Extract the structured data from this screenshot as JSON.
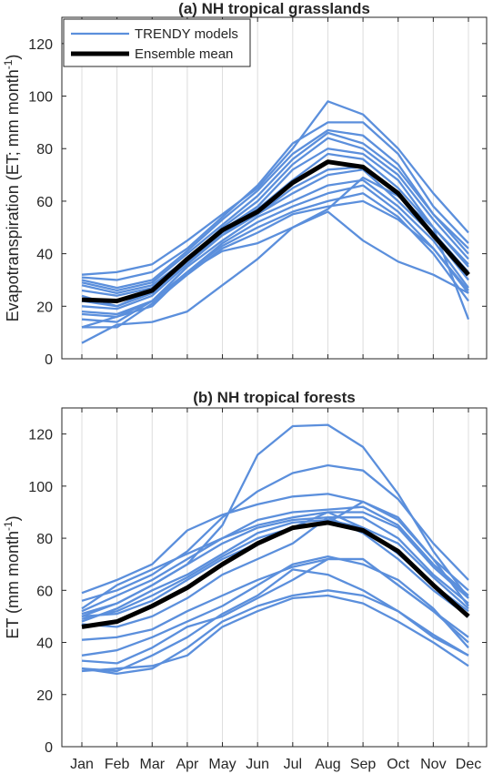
{
  "chart_data": [
    {
      "type": "line",
      "title": "(a) NH tropical grasslands",
      "ylabel": "Evapotranspiration (ET; mm month",
      "ylabel_sup": "-1",
      "ylabel_end": ")",
      "xlabel": "",
      "categories": [
        "Jan",
        "Feb",
        "Mar",
        "Apr",
        "May",
        "Jun",
        "Jul",
        "Aug",
        "Sep",
        "Oct",
        "Nov",
        "Dec"
      ],
      "show_x_tick_labels": false,
      "ylim": [
        0,
        130
      ],
      "yticks": [
        0,
        20,
        40,
        60,
        80,
        100,
        120
      ],
      "grid": "vertical",
      "legend": {
        "placement": "top-left",
        "entries": [
          {
            "label": "TRENDY models",
            "color": "#5b8fdc"
          },
          {
            "label": "Ensemble mean",
            "color": "#000000"
          }
        ]
      },
      "series": [
        {
          "values": [
            32,
            33,
            36,
            45,
            55,
            65,
            80,
            98,
            93,
            80,
            63,
            48
          ]
        },
        {
          "values": [
            31,
            30,
            33,
            42,
            54,
            66,
            82,
            90,
            90,
            78,
            58,
            44
          ]
        },
        {
          "values": [
            30,
            27,
            30,
            41,
            53,
            64,
            78,
            87,
            85,
            74,
            55,
            42
          ]
        },
        {
          "values": [
            29,
            26,
            29,
            40,
            51,
            62,
            76,
            86,
            82,
            72,
            55,
            40
          ]
        },
        {
          "values": [
            28,
            25,
            28,
            38,
            50,
            60,
            74,
            84,
            80,
            70,
            53,
            38
          ]
        },
        {
          "values": [
            26,
            24,
            27,
            37,
            49,
            58,
            72,
            80,
            78,
            68,
            50,
            36
          ]
        },
        {
          "values": [
            24,
            20,
            26,
            38,
            49,
            57,
            68,
            78,
            76,
            65,
            50,
            35
          ]
        },
        {
          "values": [
            22,
            20,
            25,
            37,
            48,
            55,
            65,
            72,
            73,
            63,
            48,
            33
          ]
        },
        {
          "values": [
            20,
            19,
            24,
            36,
            47,
            55,
            63,
            70,
            72,
            60,
            47,
            30
          ]
        },
        {
          "values": [
            18,
            17,
            22,
            35,
            45,
            54,
            60,
            66,
            68,
            58,
            45,
            27
          ]
        },
        {
          "values": [
            17,
            16,
            22,
            33,
            44,
            52,
            58,
            63,
            66,
            56,
            42,
            25
          ]
        },
        {
          "values": [
            15,
            14,
            22,
            33,
            43,
            50,
            56,
            60,
            63,
            54,
            40,
            22
          ]
        },
        {
          "values": [
            12,
            12,
            21,
            32,
            42,
            48,
            55,
            58,
            60,
            53,
            42,
            26
          ]
        },
        {
          "values": [
            12,
            16,
            20,
            33,
            41,
            44,
            50,
            56,
            45,
            37,
            32,
            25
          ]
        },
        {
          "values": [
            6,
            13,
            14,
            18,
            28,
            38,
            50,
            57,
            69,
            62,
            50,
            15
          ]
        }
      ],
      "mean": {
        "name": "Ensemble mean",
        "values": [
          22.5,
          22,
          26,
          38,
          49,
          56,
          67,
          75,
          73,
          63,
          47,
          32
        ]
      }
    },
    {
      "type": "line",
      "title": "(b) NH tropical forests",
      "ylabel": "ET (mm month",
      "ylabel_sup": "-1",
      "ylabel_end": ")",
      "xlabel": "",
      "categories": [
        "Jan",
        "Feb",
        "Mar",
        "Apr",
        "May",
        "Jun",
        "Jul",
        "Aug",
        "Sep",
        "Oct",
        "Nov",
        "Dec"
      ],
      "show_x_tick_labels": true,
      "ylim": [
        0,
        130
      ],
      "yticks": [
        0,
        20,
        40,
        60,
        80,
        100,
        120
      ],
      "grid": "vertical",
      "series": [
        {
          "values": [
            50,
            55,
            62,
            70,
            85,
            112,
            123,
            123.5,
            115,
            97,
            75,
            57
          ]
        },
        {
          "values": [
            56,
            60,
            66,
            75,
            88,
            98,
            105,
            108,
            106,
            95,
            78,
            64
          ]
        },
        {
          "values": [
            59,
            64,
            70,
            83,
            89,
            93,
            96,
            97,
            94,
            88,
            72,
            60
          ]
        },
        {
          "values": [
            53,
            62,
            68,
            74,
            80,
            87,
            90,
            91,
            92,
            85,
            70,
            58
          ]
        },
        {
          "values": [
            52,
            58,
            64,
            72,
            80,
            85,
            88,
            90,
            90,
            84,
            69,
            57
          ]
        },
        {
          "values": [
            51,
            55,
            62,
            70,
            78,
            84,
            87,
            88,
            88,
            80,
            66,
            55
          ]
        },
        {
          "values": [
            48,
            53,
            60,
            66,
            74,
            82,
            86,
            87,
            84,
            78,
            65,
            53
          ]
        },
        {
          "values": [
            49,
            52,
            58,
            65,
            73,
            80,
            84,
            86,
            94,
            87,
            72,
            54
          ]
        },
        {
          "values": [
            50,
            51,
            56,
            64,
            72,
            78,
            84,
            90,
            84,
            74,
            62,
            52
          ]
        },
        {
          "values": [
            47,
            46,
            50,
            57,
            66,
            72,
            78,
            88,
            82,
            72,
            60,
            50
          ]
        },
        {
          "values": [
            41,
            42,
            45,
            52,
            58,
            64,
            69,
            72,
            72,
            62,
            52,
            42
          ]
        },
        {
          "values": [
            35,
            37,
            42,
            48,
            54,
            62,
            70,
            73,
            70,
            64,
            53,
            38
          ]
        },
        {
          "values": [
            33,
            32,
            38,
            46,
            50,
            57,
            64,
            72,
            72,
            62,
            52,
            40
          ]
        },
        {
          "values": [
            30,
            29,
            35,
            42,
            51,
            58,
            68,
            66,
            60,
            52,
            43,
            35
          ]
        },
        {
          "values": [
            30,
            28,
            30,
            38,
            48,
            54,
            58,
            60,
            58,
            52,
            42,
            35
          ]
        },
        {
          "values": [
            29,
            30,
            31,
            35,
            46,
            52,
            57,
            58,
            55,
            48,
            40,
            31
          ]
        }
      ],
      "mean": {
        "name": "Ensemble mean",
        "values": [
          46,
          48,
          54,
          61,
          70,
          78,
          84,
          86,
          83,
          75,
          62,
          50
        ]
      }
    }
  ]
}
